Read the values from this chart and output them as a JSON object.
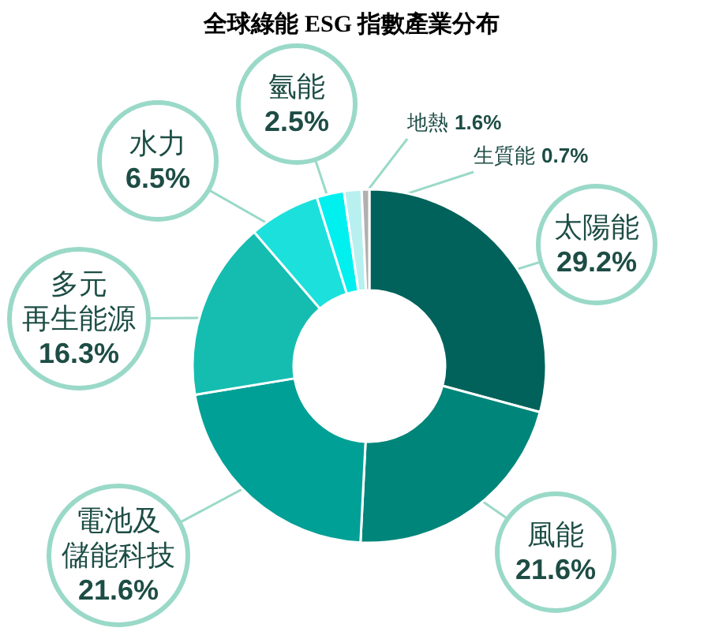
{
  "chart_data": {
    "type": "donut",
    "title": "全球綠能 ESG 指數產業分布",
    "categories": [
      "太陽能",
      "風能",
      "電池及儲能科技",
      "多元再生能源",
      "水力",
      "氫能",
      "地熱",
      "生質能"
    ],
    "values": [
      29.2,
      21.6,
      21.6,
      16.3,
      6.5,
      2.5,
      1.6,
      0.7
    ],
    "colors": [
      "#00625a",
      "#00857a",
      "#00a096",
      "#14bdb0",
      "#1ce0dc",
      "#00f0f0",
      "#b8f0f0",
      "#b0b0b0"
    ],
    "value_labels": [
      "29.2%",
      "21.6%",
      "21.6%",
      "16.3%",
      "6.5%",
      "2.5%",
      "1.6%",
      "0.7%"
    ]
  }
}
